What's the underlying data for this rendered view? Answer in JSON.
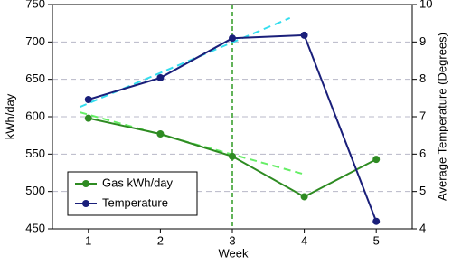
{
  "chart_data": {
    "type": "line",
    "x_label": "Week",
    "y_label": "kWh/day",
    "y2_label": "Average Temperature (Degrees)",
    "x": [
      1,
      2,
      3,
      4,
      5
    ],
    "xlim": [
      0.5,
      5.5
    ],
    "xticks": [
      1,
      2,
      3,
      4,
      5
    ],
    "ylim": [
      450,
      750
    ],
    "yticks": [
      450,
      500,
      550,
      600,
      650,
      700,
      750
    ],
    "y2lim": [
      4,
      10
    ],
    "y2ticks": [
      4,
      5,
      6,
      7,
      8,
      9,
      10
    ],
    "grid": true,
    "legend": "lower left",
    "series": [
      {
        "name": "Gas kWh/day",
        "color": "#2e8b22",
        "values": [
          598,
          577,
          547,
          493,
          543
        ]
      },
      {
        "name": "Temperature",
        "color": "#1a1f7a",
        "axis": "y2",
        "values": [
          7.46,
          8.04,
          9.1,
          9.18,
          4.2
        ]
      }
    ],
    "trend_lines": [
      {
        "color": "#33ddee",
        "axis": "y2",
        "x": [
          0.88,
          3.8
        ],
        "values": [
          7.26,
          9.64
        ]
      },
      {
        "color": "#66ee66",
        "x": [
          0.88,
          4
        ],
        "values": [
          606,
          523
        ]
      }
    ],
    "vline": {
      "x": 3,
      "color": "#2e9a22"
    }
  }
}
